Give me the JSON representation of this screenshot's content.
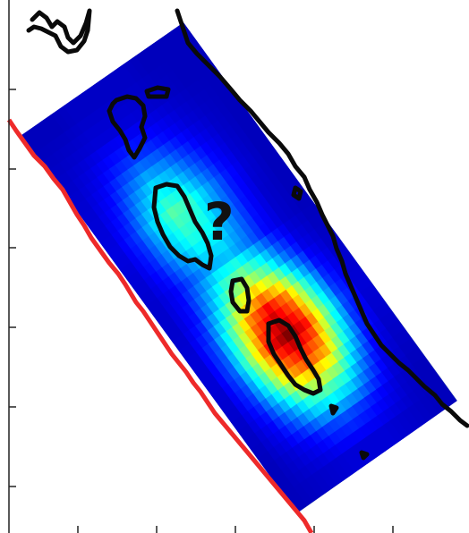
{
  "map": {
    "annotation_text": "?",
    "colormap": [
      "#00008f",
      "#0000ff",
      "#0080ff",
      "#00ffff",
      "#80ff80",
      "#ffff00",
      "#ff8000",
      "#ff0000",
      "#800000"
    ],
    "colors": {
      "background_field": "#2a3fb0",
      "coastline": "#0a0a0a",
      "trench_line": "#ee2a2a",
      "axis": "#222222"
    },
    "slip_level": [
      [
        0.05,
        0.05,
        0.06,
        0.06,
        0.06,
        0.06,
        0.05,
        0.05,
        0.05
      ],
      [
        0.06,
        0.07,
        0.08,
        0.08,
        0.08,
        0.07,
        0.06,
        0.05,
        0.05
      ],
      [
        0.07,
        0.1,
        0.15,
        0.18,
        0.16,
        0.12,
        0.08,
        0.06,
        0.05
      ],
      [
        0.08,
        0.14,
        0.25,
        0.34,
        0.3,
        0.2,
        0.12,
        0.07,
        0.05
      ],
      [
        0.09,
        0.18,
        0.34,
        0.46,
        0.42,
        0.28,
        0.15,
        0.08,
        0.05
      ],
      [
        0.08,
        0.16,
        0.3,
        0.4,
        0.38,
        0.26,
        0.14,
        0.07,
        0.05
      ],
      [
        0.07,
        0.12,
        0.22,
        0.3,
        0.32,
        0.24,
        0.13,
        0.07,
        0.05
      ],
      [
        0.07,
        0.14,
        0.3,
        0.48,
        0.56,
        0.44,
        0.24,
        0.1,
        0.06
      ],
      [
        0.08,
        0.2,
        0.45,
        0.74,
        0.88,
        0.74,
        0.42,
        0.16,
        0.07
      ],
      [
        0.08,
        0.22,
        0.52,
        0.86,
        1.0,
        0.86,
        0.5,
        0.2,
        0.08
      ],
      [
        0.07,
        0.18,
        0.42,
        0.7,
        0.8,
        0.7,
        0.4,
        0.16,
        0.07
      ],
      [
        0.06,
        0.12,
        0.25,
        0.4,
        0.46,
        0.4,
        0.24,
        0.1,
        0.06
      ],
      [
        0.05,
        0.08,
        0.12,
        0.18,
        0.2,
        0.17,
        0.12,
        0.07,
        0.05
      ],
      [
        0.05,
        0.06,
        0.07,
        0.08,
        0.08,
        0.08,
        0.07,
        0.06,
        0.05
      ]
    ]
  }
}
